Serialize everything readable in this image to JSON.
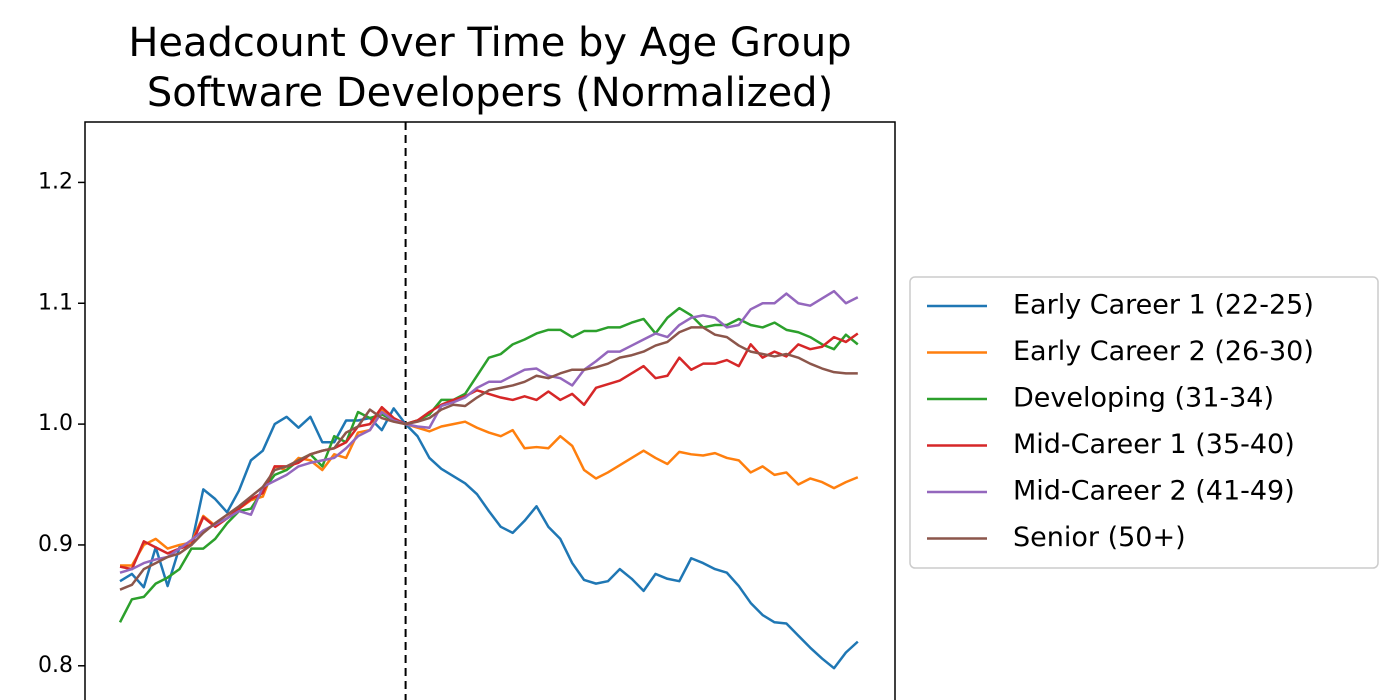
{
  "chart_data": {
    "type": "line",
    "title": "Headcount Over Time by Age Group",
    "subtitle": "Software Developers (Normalized)",
    "categories": [
      null,
      null,
      null,
      null,
      null,
      null,
      null,
      null,
      null,
      null,
      null,
      null,
      null,
      null,
      null,
      null,
      null,
      null,
      null,
      null,
      null,
      null,
      null,
      null,
      null,
      null,
      null,
      null,
      null,
      null,
      null,
      null,
      null,
      null,
      null,
      null,
      null,
      null,
      null,
      null,
      null,
      null,
      null,
      null,
      null,
      null,
      null,
      null,
      null,
      null,
      null,
      null,
      null,
      null,
      null,
      null,
      null,
      null,
      null,
      null,
      null,
      null,
      null
    ],
    "reference_line": {
      "category_index": 24,
      "style": "dashed",
      "color": "#000000"
    },
    "ylim": [
      0.775,
      1.25
    ],
    "yticks": [
      0.8,
      0.9,
      {
        "value": 1.0,
        "label": "1.0"
      },
      1.1,
      1.2
    ],
    "grid": false,
    "legend": "outside right",
    "series": [
      {
        "name": "Early Career 1 (22-25)",
        "color": "#1f77b4",
        "values": [
          0.87,
          0.876,
          0.865,
          0.898,
          0.866,
          0.898,
          0.9,
          0.946,
          0.938,
          0.927,
          0.945,
          0.97,
          0.978,
          1.0,
          1.006,
          0.997,
          1.006,
          0.985,
          0.985,
          1.003,
          1.003,
          1.005,
          0.995,
          1.013,
          1.0,
          0.99,
          0.972,
          0.963,
          0.957,
          0.951,
          0.942,
          0.928,
          0.915,
          0.91,
          0.92,
          0.932,
          0.915,
          0.905,
          0.885,
          0.871,
          0.868,
          0.87,
          0.88,
          0.872,
          0.862,
          0.876,
          0.872,
          0.87,
          0.889,
          0.885,
          0.88,
          0.877,
          0.866,
          0.852,
          0.842,
          0.836,
          0.835,
          0.825,
          0.815,
          0.806,
          0.798,
          0.811,
          0.82
        ]
      },
      {
        "name": "Early Career 2 (26-30)",
        "color": "#ff7f0e",
        "values": [
          0.883,
          0.883,
          0.9,
          0.905,
          0.897,
          0.9,
          0.902,
          0.924,
          0.916,
          0.922,
          0.93,
          0.937,
          0.94,
          0.965,
          0.962,
          0.972,
          0.97,
          0.962,
          0.975,
          0.972,
          0.993,
          0.995,
          1.012,
          1.003,
          1.0,
          0.997,
          0.994,
          0.998,
          1.0,
          1.002,
          0.997,
          0.993,
          0.99,
          0.995,
          0.98,
          0.981,
          0.98,
          0.99,
          0.982,
          0.962,
          0.955,
          0.96,
          0.966,
          0.972,
          0.978,
          0.972,
          0.967,
          0.977,
          0.975,
          0.974,
          0.976,
          0.972,
          0.97,
          0.96,
          0.965,
          0.958,
          0.96,
          0.95,
          0.955,
          0.952,
          0.947,
          0.952,
          0.956
        ]
      },
      {
        "name": "Developing (31-34)",
        "color": "#2ca02c",
        "values": [
          0.836,
          0.855,
          0.857,
          0.868,
          0.873,
          0.88,
          0.897,
          0.897,
          0.905,
          0.918,
          0.928,
          0.93,
          0.945,
          0.958,
          0.962,
          0.97,
          0.975,
          0.965,
          0.99,
          0.985,
          1.01,
          1.005,
          1.008,
          1.003,
          1.0,
          1.003,
          1.008,
          1.02,
          1.02,
          1.025,
          1.04,
          1.055,
          1.058,
          1.066,
          1.07,
          1.075,
          1.078,
          1.078,
          1.072,
          1.077,
          1.077,
          1.08,
          1.08,
          1.084,
          1.087,
          1.075,
          1.088,
          1.096,
          1.09,
          1.08,
          1.082,
          1.082,
          1.087,
          1.082,
          1.08,
          1.084,
          1.078,
          1.076,
          1.072,
          1.066,
          1.062,
          1.074,
          1.066
        ]
      },
      {
        "name": "Mid-Career 1 (35-40)",
        "color": "#d62728",
        "values": [
          0.882,
          0.88,
          0.903,
          0.898,
          0.893,
          0.897,
          0.9,
          0.923,
          0.915,
          0.922,
          0.93,
          0.938,
          0.943,
          0.965,
          0.965,
          0.968,
          0.975,
          0.978,
          0.98,
          0.985,
          0.998,
          1.0,
          1.014,
          1.005,
          1.0,
          1.003,
          1.01,
          1.016,
          1.02,
          1.023,
          1.028,
          1.025,
          1.022,
          1.02,
          1.023,
          1.02,
          1.027,
          1.02,
          1.025,
          1.016,
          1.03,
          1.033,
          1.036,
          1.042,
          1.048,
          1.038,
          1.04,
          1.055,
          1.045,
          1.05,
          1.05,
          1.053,
          1.048,
          1.066,
          1.055,
          1.06,
          1.056,
          1.066,
          1.062,
          1.064,
          1.072,
          1.068,
          1.075
        ]
      },
      {
        "name": "Mid-Career 2 (41-49)",
        "color": "#9467bd",
        "values": [
          0.877,
          0.88,
          0.885,
          0.888,
          0.89,
          0.897,
          0.904,
          0.912,
          0.917,
          0.922,
          0.928,
          0.925,
          0.948,
          0.953,
          0.958,
          0.965,
          0.968,
          0.97,
          0.972,
          0.98,
          0.99,
          0.995,
          1.01,
          1.003,
          1.0,
          0.998,
          0.997,
          1.015,
          1.018,
          1.022,
          1.03,
          1.035,
          1.035,
          1.04,
          1.045,
          1.046,
          1.04,
          1.038,
          1.032,
          1.045,
          1.052,
          1.06,
          1.06,
          1.065,
          1.07,
          1.075,
          1.072,
          1.082,
          1.088,
          1.09,
          1.088,
          1.08,
          1.082,
          1.095,
          1.1,
          1.1,
          1.108,
          1.1,
          1.098,
          1.104,
          1.11,
          1.1,
          1.105
        ]
      },
      {
        "name": "Senior (50+)",
        "color": "#8c564b",
        "values": [
          0.863,
          0.867,
          0.88,
          0.885,
          0.89,
          0.893,
          0.9,
          0.91,
          0.918,
          0.925,
          0.932,
          0.94,
          0.948,
          0.962,
          0.965,
          0.97,
          0.975,
          0.978,
          0.98,
          0.993,
          0.998,
          1.012,
          1.005,
          1.002,
          1.0,
          1.002,
          1.005,
          1.012,
          1.016,
          1.015,
          1.022,
          1.028,
          1.03,
          1.032,
          1.035,
          1.04,
          1.038,
          1.042,
          1.045,
          1.045,
          1.047,
          1.05,
          1.055,
          1.057,
          1.06,
          1.065,
          1.068,
          1.076,
          1.08,
          1.08,
          1.074,
          1.072,
          1.065,
          1.06,
          1.058,
          1.056,
          1.058,
          1.055,
          1.05,
          1.046,
          1.043,
          1.042,
          1.042
        ]
      }
    ]
  }
}
